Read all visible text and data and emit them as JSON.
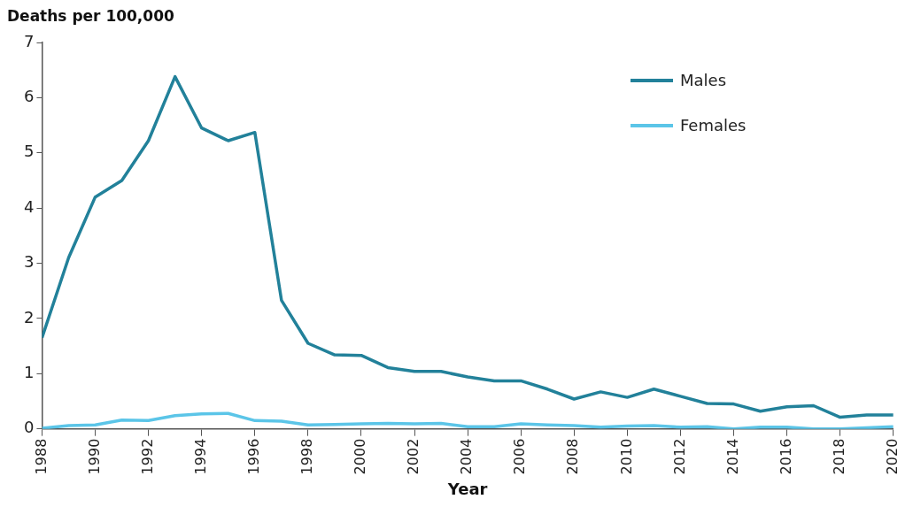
{
  "chart_data": {
    "type": "line",
    "ylabel": "Deaths per 100,000",
    "xlabel": "Year",
    "x": [
      1988,
      1989,
      1990,
      1991,
      1992,
      1993,
      1994,
      1995,
      1996,
      1997,
      1998,
      1999,
      2000,
      2001,
      2002,
      2003,
      2004,
      2005,
      2006,
      2007,
      2008,
      2009,
      2010,
      2011,
      2012,
      2013,
      2014,
      2015,
      2016,
      2017,
      2018,
      2019,
      2020
    ],
    "series": [
      {
        "name": "Males",
        "color": "#22819a",
        "values": [
          1.65,
          3.1,
          4.2,
          4.5,
          5.22,
          6.38,
          5.45,
          5.22,
          5.37,
          2.33,
          1.55,
          1.34,
          1.33,
          1.11,
          1.04,
          1.04,
          0.94,
          0.87,
          0.87,
          0.72,
          0.54,
          0.67,
          0.57,
          0.72,
          0.59,
          0.46,
          0.45,
          0.32,
          0.4,
          0.42,
          0.21,
          0.25,
          0.25
        ]
      },
      {
        "name": "Females",
        "color": "#5bc5e8",
        "values": [
          0.01,
          0.06,
          0.07,
          0.16,
          0.15,
          0.24,
          0.27,
          0.28,
          0.15,
          0.14,
          0.07,
          0.08,
          0.09,
          0.1,
          0.09,
          0.1,
          0.04,
          0.04,
          0.09,
          0.07,
          0.06,
          0.03,
          0.05,
          0.06,
          0.03,
          0.04,
          0.0,
          0.03,
          0.03,
          0.0,
          0.0,
          0.02,
          0.04
        ]
      }
    ],
    "xlim": [
      1988,
      2020
    ],
    "xticks": [
      1988,
      1990,
      1992,
      1994,
      1996,
      1998,
      2000,
      2002,
      2004,
      2006,
      2008,
      2010,
      2012,
      2014,
      2016,
      2018,
      2020
    ],
    "ylim": [
      0,
      7
    ],
    "yticks": [
      0,
      1,
      2,
      3,
      4,
      5,
      6,
      7
    ],
    "grid": false,
    "legend": "top right",
    "marker": "none",
    "line_style": "solid"
  }
}
